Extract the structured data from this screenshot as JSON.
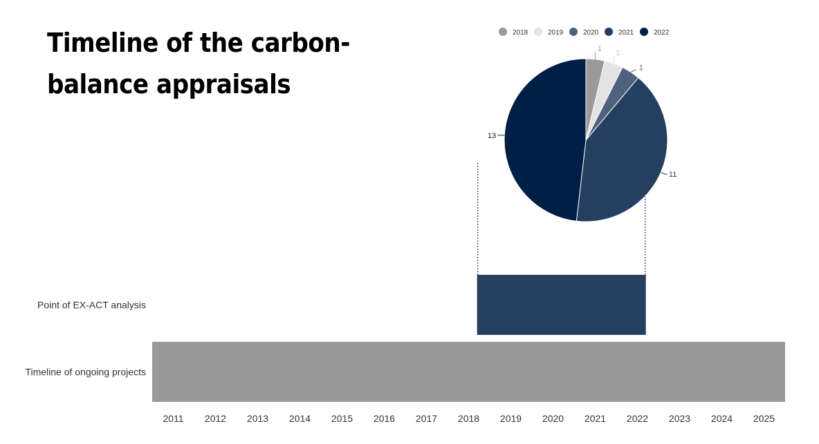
{
  "chart_data": {
    "type": "bar",
    "title": "Timeline of the carbon-balance appraisals",
    "categories": [
      "Point of EX-ACT analysis",
      "Timeline of ongoing projects"
    ],
    "x_ticks": [
      "2011",
      "2012",
      "2013",
      "2014",
      "2015",
      "2016",
      "2017",
      "2018",
      "2019",
      "2020",
      "2021",
      "2022",
      "2023",
      "2024",
      "2025"
    ],
    "xlim": [
      2010.5,
      2025.5
    ],
    "bars": [
      {
        "category": "Point of EX-ACT analysis",
        "start": 2018.2,
        "end": 2022.2,
        "color": "#243F5F"
      },
      {
        "category": "Timeline of ongoing projects",
        "start": 2010.25,
        "end": 2025.75,
        "color": "#999999"
      }
    ],
    "pie": {
      "type": "pie",
      "legend_position": "top",
      "slices": [
        {
          "label": "2018",
          "value": 1,
          "color": "#9A9A9A"
        },
        {
          "label": "2019",
          "value": 1,
          "color": "#E3E3E3"
        },
        {
          "label": "2020",
          "value": 1,
          "color": "#4E627E"
        },
        {
          "label": "2021",
          "value": 11,
          "color": "#243F5F"
        },
        {
          "label": "2022",
          "value": 13,
          "color": "#001F47"
        }
      ]
    }
  }
}
